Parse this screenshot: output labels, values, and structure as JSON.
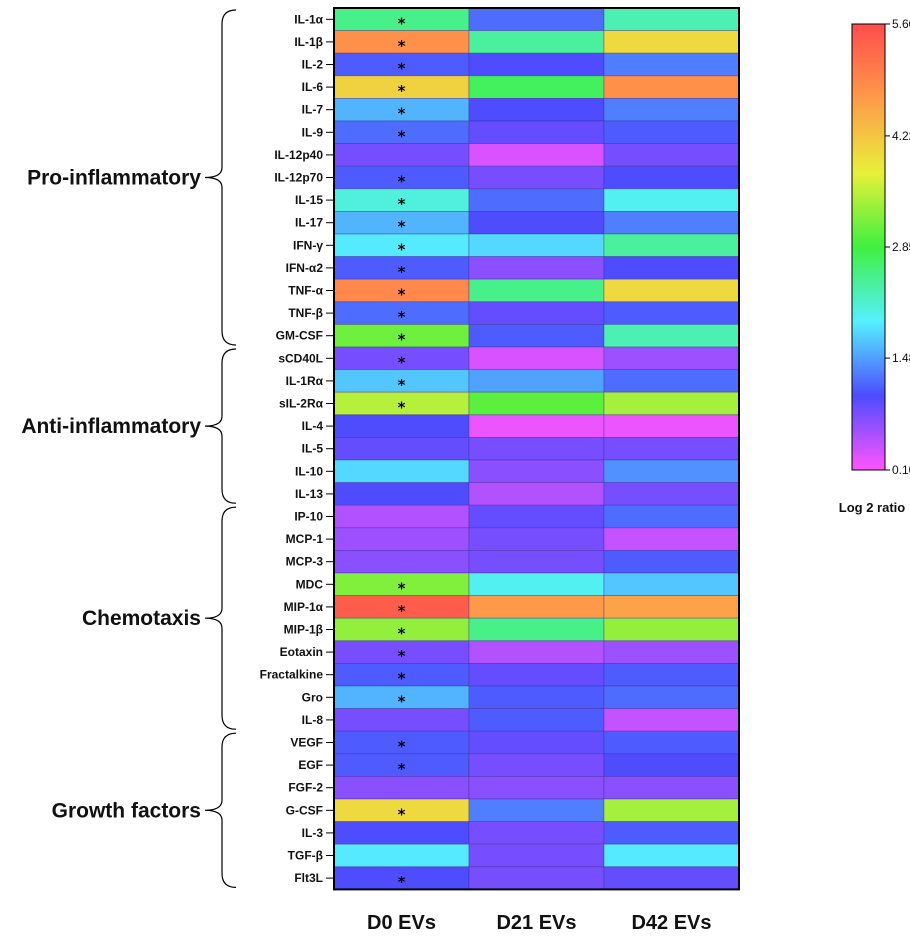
{
  "chart_data": {
    "type": "heatmap",
    "columns": [
      "D0 EVs",
      "D21 EVs",
      "D42 EVs"
    ],
    "rows": [
      "IL-1α",
      "IL-1β",
      "IL-2",
      "IL-6",
      "IL-7",
      "IL-9",
      "IL-12p40",
      "IL-12p70",
      "IL-15",
      "IL-17",
      "IFN-γ",
      "IFN-α2",
      "TNF-α",
      "TNF-β",
      "GM-CSF",
      "sCD40L",
      "IL-1Rα",
      "sIL-2Rα",
      "IL-4",
      "IL-5",
      "IL-10",
      "IL-13",
      "IP-10",
      "MCP-1",
      "MCP-3",
      "MDC",
      "MIP-1α",
      "MIP-1β",
      "Eotaxin",
      "Fractalkine",
      "Gro",
      "IL-8",
      "VEGF",
      "EGF",
      "FGF-2",
      "G-CSF",
      "IL-3",
      "TGF-β",
      "Flt3L"
    ],
    "values": [
      [
        2.5,
        1.2,
        2.3
      ],
      [
        4.8,
        2.4,
        4.0
      ],
      [
        1.1,
        1.0,
        1.3
      ],
      [
        4.1,
        2.7,
        4.8
      ],
      [
        1.6,
        1.0,
        1.3
      ],
      [
        1.2,
        0.9,
        1.1
      ],
      [
        0.8,
        0.3,
        0.8
      ],
      [
        1.1,
        0.8,
        1.0
      ],
      [
        2.1,
        1.2,
        2.0
      ],
      [
        1.6,
        1.0,
        1.3
      ],
      [
        1.9,
        1.8,
        2.4
      ],
      [
        1.1,
        0.7,
        1.0
      ],
      [
        4.9,
        2.5,
        4.0
      ],
      [
        1.2,
        0.9,
        1.1
      ],
      [
        3.1,
        1.1,
        2.3
      ],
      [
        0.8,
        0.3,
        0.6
      ],
      [
        1.7,
        1.5,
        1.2
      ],
      [
        3.5,
        3.0,
        3.4
      ],
      [
        1.0,
        0.2,
        0.2
      ],
      [
        0.9,
        0.8,
        0.8
      ],
      [
        1.8,
        0.7,
        1.4
      ],
      [
        1.0,
        0.5,
        0.8
      ],
      [
        0.5,
        0.9,
        1.2
      ],
      [
        0.6,
        0.8,
        0.4
      ],
      [
        0.7,
        0.8,
        1.1
      ],
      [
        3.2,
        2.0,
        1.7
      ],
      [
        5.4,
        4.7,
        4.6
      ],
      [
        3.3,
        2.5,
        3.3
      ],
      [
        0.8,
        0.5,
        0.6
      ],
      [
        1.1,
        0.9,
        1.1
      ],
      [
        1.6,
        1.1,
        1.2
      ],
      [
        0.8,
        1.1,
        0.4
      ],
      [
        1.1,
        0.9,
        1.1
      ],
      [
        1.1,
        0.8,
        1.0
      ],
      [
        0.7,
        0.7,
        0.7
      ],
      [
        4.0,
        1.3,
        3.4
      ],
      [
        1.0,
        0.8,
        1.1
      ],
      [
        1.9,
        0.8,
        1.9
      ],
      [
        1.0,
        0.8,
        0.9
      ]
    ],
    "significant_D0": [
      true,
      true,
      true,
      true,
      true,
      true,
      false,
      true,
      true,
      true,
      true,
      true,
      true,
      true,
      true,
      true,
      true,
      true,
      false,
      false,
      false,
      false,
      false,
      false,
      false,
      true,
      true,
      true,
      true,
      true,
      true,
      false,
      true,
      true,
      false,
      true,
      false,
      false,
      true
    ],
    "star_symbol": "*",
    "groups": [
      {
        "label": "Pro-inflammatory",
        "start": 0,
        "end": 14
      },
      {
        "label": "Anti-inflammatory",
        "start": 15,
        "end": 21
      },
      {
        "label": "Chemotaxis",
        "start": 22,
        "end": 31
      },
      {
        "label": "Growth factors",
        "start": 32,
        "end": 38
      }
    ],
    "colorbar": {
      "title": "Log 2 ratio",
      "min": 0.1,
      "max": 5.6,
      "ticks": [
        "5.60",
        "4.22",
        "2.85",
        "1.48",
        "0.10"
      ],
      "tick_values": [
        5.6,
        4.22,
        2.85,
        1.48,
        0.1
      ],
      "colors": [
        "#ff55ff",
        "#4c4cff",
        "#55f0ff",
        "#3ff03f",
        "#e8f03a",
        "#ff9a4a",
        "#ff4c4c"
      ]
    }
  }
}
